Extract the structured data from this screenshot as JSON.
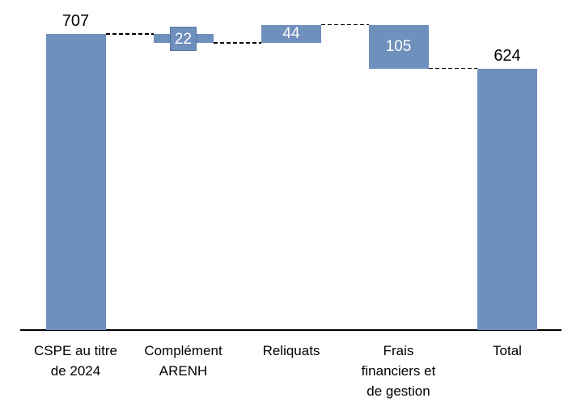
{
  "chart_data": {
    "type": "waterfall",
    "title": "",
    "xlabel": "",
    "ylabel": "",
    "ylim": [
      0,
      760
    ],
    "grid": false,
    "legend": "none",
    "colors": {
      "bar": "#6F8FBC",
      "label_inside_text": "#FFFFFF",
      "label_outside_text": "#000000",
      "connector": "#000000",
      "axis": "#000000"
    },
    "categories": [
      "CSPE au titre de 2024",
      "Complément ARENH",
      "Reliquats",
      "Frais financiers et de gestion",
      "Total"
    ],
    "bars": [
      {
        "name": "CSPE au titre de 2024",
        "label_lines": [
          "CSPE au titre",
          "de 2024"
        ],
        "value": 707,
        "display": "707",
        "from": 0,
        "to": 707,
        "label_style": "above"
      },
      {
        "name": "Complément ARENH",
        "label_lines": [
          "Complément",
          "ARENH"
        ],
        "value": -22,
        "display": "22",
        "from": 685,
        "to": 707,
        "label_style": "boxed"
      },
      {
        "name": "Reliquats",
        "label_lines": [
          "Reliquats"
        ],
        "value": 44,
        "display": "44",
        "from": 685,
        "to": 729,
        "label_style": "inside"
      },
      {
        "name": "Frais financiers et de gestion",
        "label_lines": [
          "Frais",
          "financiers et",
          "de gestion"
        ],
        "value": -105,
        "display": "105",
        "from": 624,
        "to": 729,
        "label_style": "inside"
      },
      {
        "name": "Total",
        "label_lines": [
          "Total"
        ],
        "value": 624,
        "display": "624",
        "from": 0,
        "to": 624,
        "label_style": "above"
      }
    ],
    "connectors": [
      {
        "level": 707,
        "from_bar": 0,
        "to_bar": 1
      },
      {
        "level": 685,
        "from_bar": 1,
        "to_bar": 2
      },
      {
        "level": 729,
        "from_bar": 2,
        "to_bar": 3
      },
      {
        "level": 624,
        "from_bar": 3,
        "to_bar": 4
      }
    ]
  }
}
